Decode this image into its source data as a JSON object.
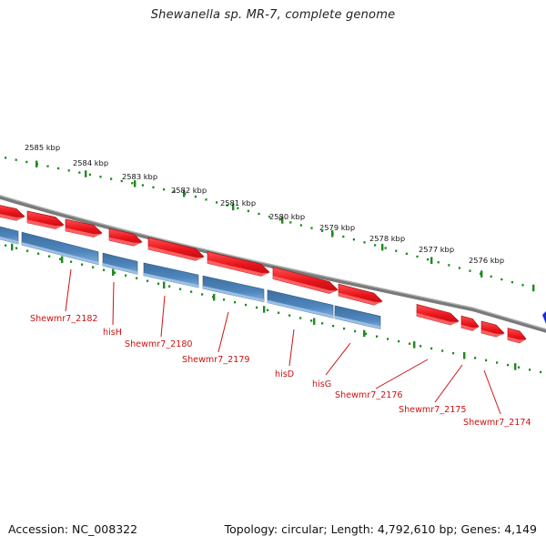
{
  "title": "Shewanella sp. MR-7, complete genome",
  "footer": {
    "accession": "Accession: NC_008322",
    "summary": "Topology: circular; Length: 4,792,610 bp; Genes: 4,149"
  },
  "colors": {
    "forward_gene": "#e8131b",
    "forward_gene_light": "#ff7070",
    "cds_reverse_track": "#4f86bd",
    "cds_light": "#9cc0e6",
    "backbone": "#7a7a7a",
    "ticks": "#1e8a1e",
    "label": "#cc1111",
    "edge_marker": "#1a2bd6"
  },
  "scale_labels": [
    {
      "text": "2585 kbp"
    },
    {
      "text": "2584 kbp"
    },
    {
      "text": "2583 kbp"
    },
    {
      "text": "2582 kbp"
    },
    {
      "text": "2581 kbp"
    },
    {
      "text": "2580 kbp"
    },
    {
      "text": "2579 kbp"
    },
    {
      "text": "2578 kbp"
    },
    {
      "text": "2577 kbp"
    },
    {
      "text": "2576 kbp"
    }
  ],
  "gene_labels": [
    {
      "text": "Shewmr7_2182"
    },
    {
      "text": "hisH"
    },
    {
      "text": "Shewmr7_2180"
    },
    {
      "text": "Shewmr7_2179"
    },
    {
      "text": "hisD"
    },
    {
      "text": "hisG"
    },
    {
      "text": "Shewmr7_2176"
    },
    {
      "text": "Shewmr7_2175"
    },
    {
      "text": "Shewmr7_2174"
    }
  ]
}
